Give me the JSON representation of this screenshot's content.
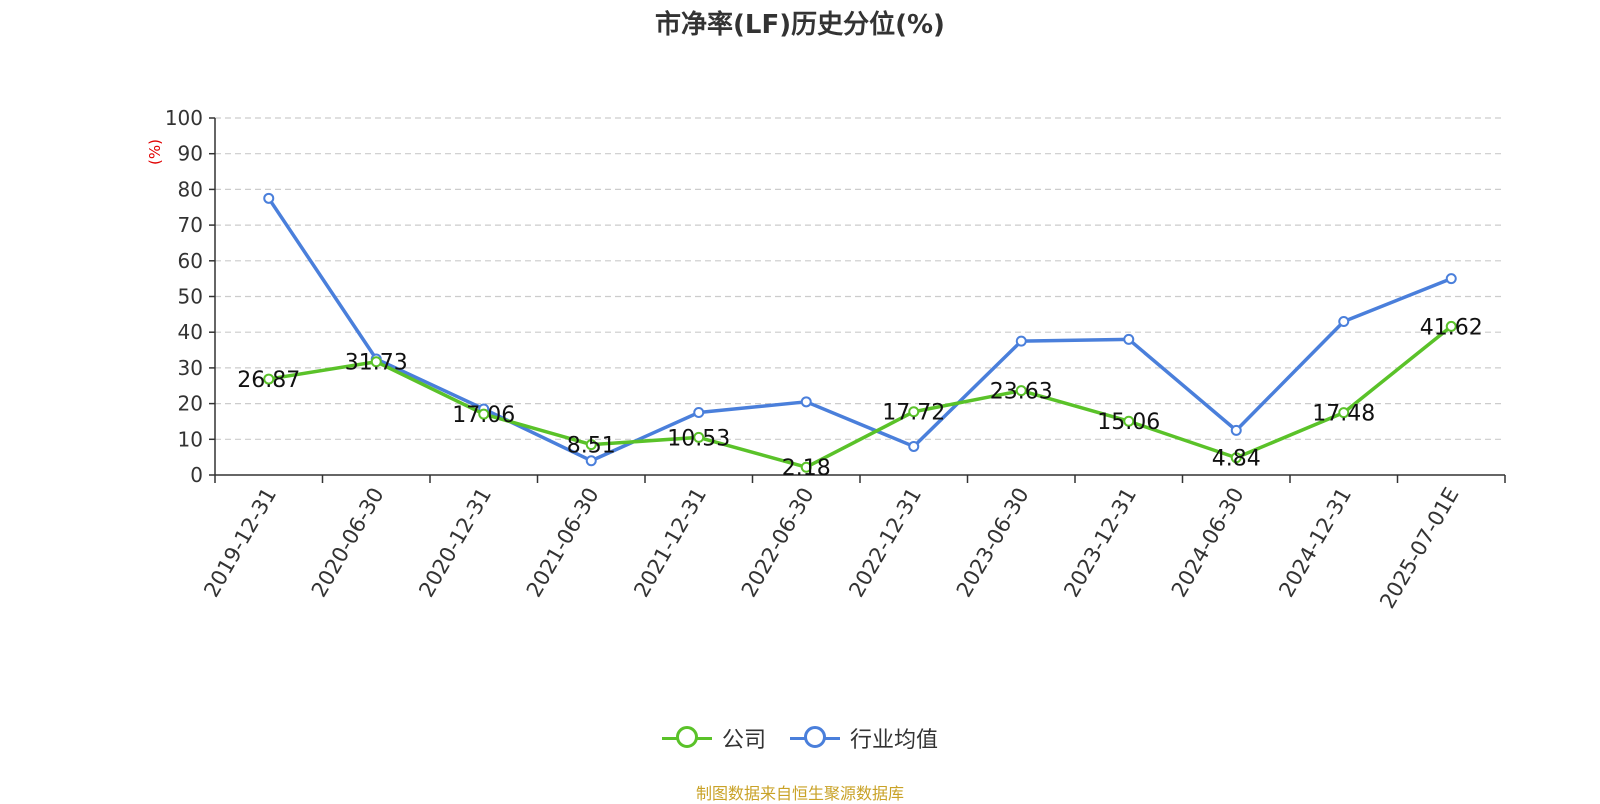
{
  "title": "市净率(LF)历史分位(%)",
  "source": "制图数据来自恒生聚源数据库",
  "chart_data": {
    "type": "line",
    "title": "市净率(LF)历史分位(%)",
    "ylabel": "(%)",
    "ylim": [
      0,
      100
    ],
    "yticks": [
      0,
      10,
      20,
      30,
      40,
      50,
      60,
      70,
      80,
      90,
      100
    ],
    "grid": true,
    "legend_position": "bottom",
    "categories": [
      "2019-12-31",
      "2020-06-30",
      "2020-12-31",
      "2021-06-30",
      "2021-12-31",
      "2022-06-30",
      "2022-12-31",
      "2023-06-30",
      "2023-12-31",
      "2024-06-30",
      "2024-12-31",
      "2025-07-01E"
    ],
    "series": [
      {
        "name": "公司",
        "color": "#5ac229",
        "values": [
          26.87,
          31.73,
          17.06,
          8.51,
          10.53,
          2.18,
          17.72,
          23.63,
          15.06,
          4.84,
          17.48,
          41.62
        ],
        "labels": [
          "26.87",
          "31.73",
          "17.06",
          "8.51",
          "10.53",
          "2.18",
          "17.72",
          "23.63",
          "15.06",
          "4.84",
          "17.48",
          "41.62"
        ]
      },
      {
        "name": "行业均值",
        "color": "#4a7fdb",
        "values": [
          77.5,
          32.5,
          18.5,
          4.0,
          17.5,
          20.5,
          8.0,
          37.5,
          38.0,
          12.5,
          43.0,
          55.0
        ]
      }
    ]
  }
}
